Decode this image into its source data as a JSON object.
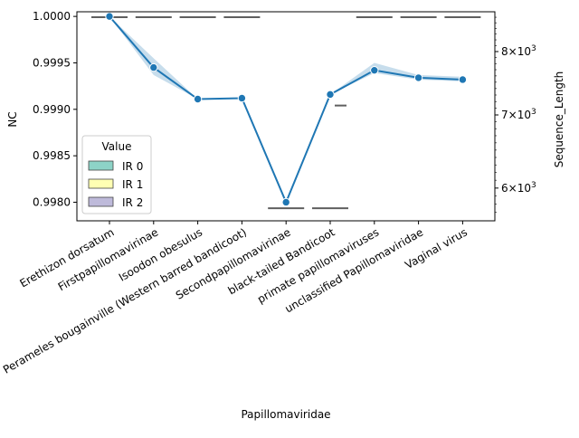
{
  "chart_data": {
    "type": "line",
    "xlabel": "Papillomaviridae",
    "ylabel": "NC",
    "ylabel_right": "Sequence_Length",
    "categories": [
      "Erethizon dorsatum",
      "Firstpapillomavirinae",
      "Isoodon obesulus",
      "Perameles bougainville (Western barred bandicoot)",
      "Secondpapillomavirinae",
      "black-tailed Bandicoot",
      "primate papillomaviruses",
      "unclassified Papillomaviridae",
      "Vaginal virus"
    ],
    "ylim": [
      0.9978,
      1.00005
    ],
    "yticks": [
      0.998,
      0.9985,
      0.999,
      0.9995,
      1.0
    ],
    "ytick_labels": [
      "0.9980",
      "0.9985",
      "0.9990",
      "0.9995",
      "1.0000"
    ],
    "series": [
      {
        "values": [
          1.0,
          0.99945,
          0.99911,
          0.99912,
          0.998,
          0.99916,
          0.99942,
          0.99934,
          0.99932
        ],
        "ci_low": [
          1.0,
          0.99937,
          0.99911,
          0.99912,
          0.998,
          0.99916,
          0.99939,
          0.99932,
          0.9993
        ],
        "ci_high": [
          1.0,
          0.99955,
          0.99911,
          0.99912,
          0.998,
          0.99916,
          0.9995,
          0.99937,
          0.99935
        ],
        "color": "#1f77b4"
      }
    ],
    "right_axis": {
      "scale": "log",
      "ylim": [
        5600,
        8700
      ],
      "ticks": [
        6000,
        7000,
        8000
      ],
      "tick_labels": [
        {
          "base": "6",
          "mult": "×",
          "pow": "10",
          "exp": "3"
        },
        {
          "base": "7",
          "mult": "×",
          "pow": "10",
          "exp": "3"
        },
        {
          "base": "8",
          "mult": "×",
          "pow": "10",
          "exp": "3"
        }
      ],
      "box_medians": [
        8600,
        8600,
        8600,
        8600,
        5750,
        5750,
        8600,
        8600,
        8600
      ],
      "extra_line": {
        "category_index": 5,
        "value": 7140
      },
      "box_color": "#5f5f5f"
    },
    "legend": {
      "title": "Value",
      "placement": "lower-left",
      "entries": [
        {
          "label": "IR 0",
          "color": "#8dd3c7"
        },
        {
          "label": "IR 1",
          "color": "#ffffb3"
        },
        {
          "label": "IR 2",
          "color": "#bebada"
        }
      ]
    },
    "grid": false
  }
}
